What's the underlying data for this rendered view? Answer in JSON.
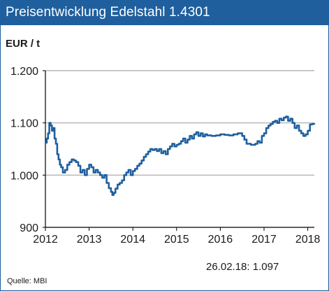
{
  "header": {
    "title": "Preisentwicklung Edelstahl 1.4301"
  },
  "unit_label": "EUR / t",
  "last_value": {
    "date": "26.02.18:",
    "value": "1.097"
  },
  "source": "Quelle:  MBI",
  "colors": {
    "title_bar": "#1f5f9e",
    "line": "#1f5f9e",
    "grid": "#a6a6a6",
    "axis": "#000000"
  },
  "chart_data": {
    "type": "line",
    "title": "Preisentwicklung Edelstahl 1.4301",
    "ylabel": "EUR / t",
    "xlabel": "",
    "xlim": [
      2012.0,
      2018.15
    ],
    "ylim": [
      900,
      1200
    ],
    "y_ticks": [
      900,
      1000,
      1100,
      1200
    ],
    "y_tick_labels": [
      "900",
      "1.000",
      "1.100",
      "1.200"
    ],
    "x_ticks": [
      2012,
      2013,
      2014,
      2015,
      2016,
      2017,
      2018
    ],
    "x_tick_labels": [
      "2012",
      "2013",
      "2014",
      "2015",
      "2016",
      "2017",
      "2018"
    ],
    "grid": "horizontal",
    "series": [
      {
        "name": "",
        "x": [
          2012.0,
          2012.03,
          2012.06,
          2012.09,
          2012.12,
          2012.15,
          2012.18,
          2012.21,
          2012.24,
          2012.27,
          2012.3,
          2012.33,
          2012.36,
          2012.4,
          2012.45,
          2012.5,
          2012.55,
          2012.6,
          2012.65,
          2012.7,
          2012.75,
          2012.8,
          2012.85,
          2012.9,
          2012.95,
          2013.0,
          2013.05,
          2013.1,
          2013.15,
          2013.2,
          2013.25,
          2013.3,
          2013.35,
          2013.4,
          2013.45,
          2013.5,
          2013.53,
          2013.56,
          2013.6,
          2013.65,
          2013.7,
          2013.75,
          2013.8,
          2013.85,
          2013.9,
          2013.95,
          2014.0,
          2014.05,
          2014.1,
          2014.15,
          2014.2,
          2014.25,
          2014.3,
          2014.35,
          2014.4,
          2014.45,
          2014.5,
          2014.55,
          2014.6,
          2014.65,
          2014.7,
          2014.75,
          2014.8,
          2014.85,
          2014.9,
          2014.95,
          2015.0,
          2015.05,
          2015.1,
          2015.15,
          2015.2,
          2015.25,
          2015.3,
          2015.35,
          2015.4,
          2015.45,
          2015.5,
          2015.55,
          2015.6,
          2015.65,
          2015.7,
          2015.8,
          2015.9,
          2016.0,
          2016.1,
          2016.2,
          2016.3,
          2016.4,
          2016.5,
          2016.55,
          2016.6,
          2016.7,
          2016.8,
          2016.85,
          2016.9,
          2016.95,
          2017.0,
          2017.05,
          2017.1,
          2017.15,
          2017.2,
          2017.25,
          2017.3,
          2017.35,
          2017.4,
          2017.45,
          2017.5,
          2017.55,
          2017.6,
          2017.65,
          2017.7,
          2017.75,
          2017.8,
          2017.85,
          2017.9,
          2017.95,
          2018.0,
          2018.05,
          2018.1,
          2018.15
        ],
        "values": [
          1062,
          1070,
          1080,
          1100,
          1095,
          1085,
          1090,
          1070,
          1060,
          1040,
          1030,
          1020,
          1015,
          1005,
          1010,
          1020,
          1025,
          1030,
          1028,
          1025,
          1018,
          1005,
          1010,
          1000,
          1012,
          1020,
          1015,
          1005,
          1010,
          1005,
          1000,
          995,
          1000,
          985,
          975,
          968,
          962,
          966,
          974,
          982,
          985,
          990,
          1000,
          1005,
          1010,
          1000,
          1008,
          1012,
          1018,
          1022,
          1028,
          1035,
          1040,
          1045,
          1050,
          1048,
          1050,
          1046,
          1050,
          1042,
          1046,
          1040,
          1050,
          1055,
          1060,
          1055,
          1058,
          1060,
          1065,
          1070,
          1062,
          1068,
          1075,
          1070,
          1078,
          1082,
          1075,
          1080,
          1074,
          1078,
          1076,
          1075,
          1076,
          1078,
          1077,
          1076,
          1078,
          1080,
          1075,
          1068,
          1060,
          1058,
          1060,
          1065,
          1062,
          1075,
          1080,
          1090,
          1095,
          1098,
          1102,
          1104,
          1100,
          1108,
          1105,
          1110,
          1112,
          1104,
          1108,
          1100,
          1090,
          1095,
          1085,
          1080,
          1075,
          1078,
          1085,
          1097,
          1098,
          1097
        ]
      }
    ]
  }
}
